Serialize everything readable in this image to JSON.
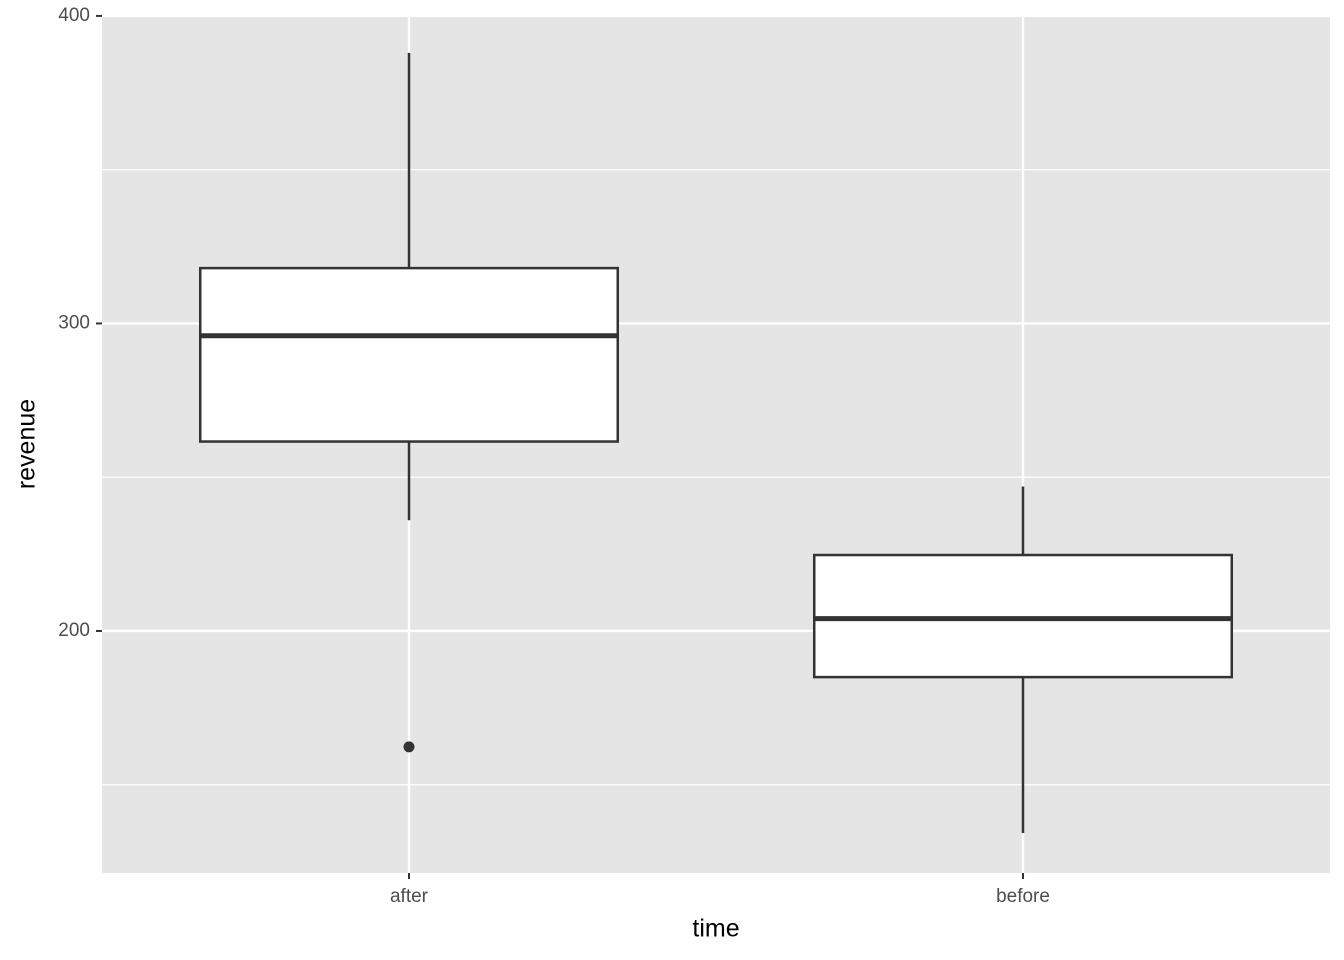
{
  "chart_data": {
    "type": "box",
    "x_label": "time",
    "y_label": "revenue",
    "categories": [
      "after",
      "before"
    ],
    "boxes": [
      {
        "whisker_low": 236,
        "q1": 261.6,
        "median": 296,
        "q3": 318,
        "whisker_high": 388,
        "outliers": [
          162.3
        ]
      },
      {
        "whisker_low": 134.3,
        "q1": 185,
        "median": 204,
        "q3": 224.7,
        "whisker_high": 247,
        "outliers": []
      }
    ],
    "ylim": [
      121.3,
      400.3
    ],
    "yticks": [
      200,
      300,
      400
    ],
    "minor_yticks": [
      150,
      250,
      350
    ],
    "grid": true,
    "panel_color": "#e5e5e5",
    "box_fill": "#ffffff",
    "line_color": "#333333"
  }
}
